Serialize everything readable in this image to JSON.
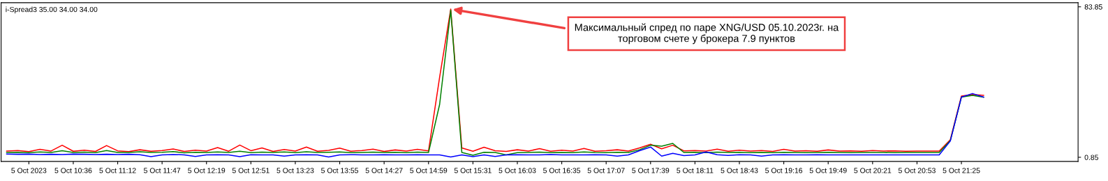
{
  "chart_data": {
    "type": "line",
    "title": "i-Spread3 35.00 34.00 34.00",
    "categories": [
      null,
      null,
      "5 Oct 2023",
      null,
      null,
      null,
      "5 Oct 10:36",
      null,
      null,
      null,
      "5 Oct 11:12",
      null,
      null,
      null,
      "5 Oct 11:47",
      null,
      null,
      null,
      "5 Oct 12:19",
      null,
      null,
      null,
      "5 Oct 12:51",
      null,
      null,
      null,
      "5 Oct 13:23",
      null,
      null,
      null,
      "5 Oct 13:55",
      null,
      null,
      null,
      "5 Oct 14:27",
      null,
      null,
      null,
      "5 Oct 14:59",
      null,
      null,
      null,
      "5 Oct 15:31",
      null,
      null,
      null,
      "5 Oct 16:03",
      null,
      null,
      null,
      "5 Oct 16:35",
      null,
      null,
      null,
      "5 Oct 17:07",
      null,
      null,
      null,
      "5 Oct 17:39",
      null,
      null,
      null,
      "5 Oct 18:11",
      null,
      null,
      null,
      "5 Oct 18:43",
      null,
      null,
      null,
      "5 Oct 19:16",
      null,
      null,
      null,
      "5 Oct 19:49",
      null,
      null,
      null,
      "5 Oct 20:21",
      null,
      null,
      null,
      "5 Oct 20:53",
      null,
      null,
      null,
      "5 Oct 21:25",
      null,
      null
    ],
    "series": [
      {
        "color": "#ff0000",
        "values": [
          4.3,
          4.6,
          4.0,
          5.2,
          4.3,
          7.5,
          4.2,
          4.8,
          4.1,
          7.3,
          4.4,
          4.0,
          5.0,
          4.2,
          4.6,
          5.4,
          4.1,
          4.8,
          4.3,
          6.2,
          4.2,
          7.6,
          4.5,
          6.0,
          4.1,
          5.1,
          4.3,
          6.5,
          4.2,
          4.7,
          5.9,
          4.2,
          4.6,
          5.3,
          4.1,
          4.9,
          4.3,
          5.2,
          4.4,
          45,
          82.6,
          6.0,
          4.2,
          6.4,
          4.5,
          4.1,
          5.0,
          4.3,
          5.6,
          4.2,
          4.8,
          4.3,
          5.7,
          4.2,
          4.5,
          5.0,
          4.3,
          6.0,
          8.0,
          5.5,
          7.5,
          4.4,
          4.6,
          4.3,
          5.3,
          4.2,
          4.8,
          4.3,
          4.6,
          4.1,
          5.2,
          4.3,
          4.5,
          4.2,
          4.9,
          4.3,
          4.4,
          4.2,
          4.6,
          4.3,
          4.4,
          4.2,
          4.3,
          4.3,
          4.3,
          10.5,
          34.6,
          35.5,
          35.0
        ]
      },
      {
        "color": "#008000",
        "values": [
          3.5,
          3.6,
          3.4,
          3.8,
          3.5,
          4.5,
          3.5,
          3.7,
          3.4,
          4.6,
          3.5,
          3.5,
          3.9,
          3.5,
          3.6,
          4.0,
          3.3,
          3.6,
          3.5,
          3.8,
          3.5,
          4.2,
          3.4,
          3.7,
          3.5,
          3.8,
          3.4,
          3.9,
          3.5,
          3.6,
          3.8,
          3.4,
          3.5,
          3.7,
          3.5,
          3.6,
          3.4,
          3.7,
          3.5,
          30,
          82,
          3.5,
          2.0,
          3.6,
          3.5,
          2.2,
          3.4,
          3.5,
          3.7,
          3.4,
          3.5,
          3.4,
          3.8,
          3.5,
          3.4,
          3.6,
          3.5,
          5.0,
          7.5,
          7.0,
          8.5,
          3.5,
          3.6,
          3.4,
          3.7,
          3.5,
          3.6,
          3.4,
          3.5,
          3.4,
          3.6,
          3.5,
          3.4,
          3.5,
          3.6,
          3.5,
          3.4,
          3.5,
          3.5,
          3.5,
          3.4,
          3.5,
          3.5,
          3.5,
          3.5,
          10.0,
          34.0,
          35.0,
          34.0
        ]
      },
      {
        "color": "#0000ff",
        "values": [
          2.6,
          2.5,
          2.6,
          2.4,
          2.5,
          2.4,
          2.6,
          2.5,
          2.4,
          2.5,
          2.4,
          2.5,
          2.3,
          1.2,
          2.2,
          2.4,
          2.2,
          1.3,
          2.2,
          2.3,
          2.2,
          1.2,
          2.3,
          2.2,
          2.2,
          1.5,
          2.2,
          2.3,
          2.2,
          1.0,
          2.2,
          2.3,
          2.2,
          2.2,
          2.3,
          2.2,
          2.2,
          2.3,
          2.2,
          2.2,
          1.0,
          2.2,
          1.2,
          2.2,
          1.3,
          2.2,
          2.3,
          2.2,
          2.2,
          2.4,
          2.2,
          2.2,
          2.2,
          2.3,
          2.2,
          1.5,
          2.2,
          4.5,
          6.5,
          1.5,
          3.0,
          1.8,
          2.2,
          3.8,
          2.3,
          1.9,
          2.3,
          2.2,
          1.5,
          2.2,
          2.3,
          2.2,
          2.2,
          2.3,
          2.2,
          2.2,
          2.2,
          2.2,
          2.2,
          2.2,
          2.2,
          2.2,
          2.2,
          2.2,
          2.2,
          9.8,
          34.0,
          36.0,
          34.0
        ]
      }
    ],
    "ylim": [
      -1.45,
      86.1
    ],
    "yticks": [
      0.85,
      83.85
    ],
    "grid": false,
    "marker": "none",
    "line_style": "solid",
    "annotations": [
      "Максимальный спред по паре XNG/USD 05.10.2023г. на\nторговом счете у брокера 7.9 пунктов"
    ]
  }
}
